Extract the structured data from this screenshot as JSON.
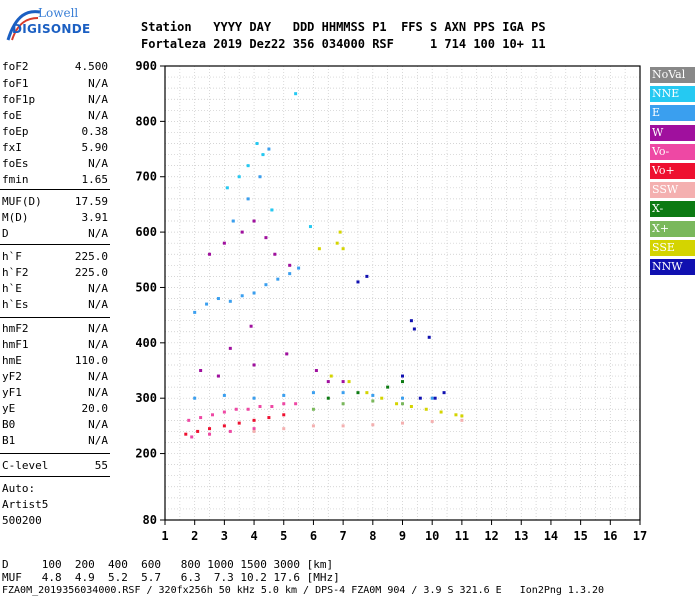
{
  "logo": {
    "line1": "Lowell",
    "line2": "DIGISONDE"
  },
  "header": {
    "line1": "Station   YYYY DAY   DDD HHMMSS P1  FFS S AXN PPS IGA PS",
    "line2": "Fortaleza 2019 Dez22 356 034000 RSF     1 714 100 10+ 11"
  },
  "params": [
    {
      "label": "foF2",
      "value": "4.500"
    },
    {
      "label": "foF1",
      "value": "N/A"
    },
    {
      "label": "foF1p",
      "value": "N/A"
    },
    {
      "label": "foE",
      "value": "N/A"
    },
    {
      "label": "foEp",
      "value": "0.38"
    },
    {
      "label": "fxI",
      "value": "5.90"
    },
    {
      "label": "foEs",
      "value": "N/A"
    },
    {
      "label": "fmin",
      "value": "1.65"
    },
    {
      "label": "MUF(D)",
      "value": "17.59"
    },
    {
      "label": "M(D)",
      "value": "3.91"
    },
    {
      "label": "D",
      "value": "N/A"
    },
    {
      "label": "h`F",
      "value": "225.0"
    },
    {
      "label": "h`F2",
      "value": "225.0"
    },
    {
      "label": "h`E",
      "value": "N/A"
    },
    {
      "label": "h`Es",
      "value": "N/A"
    },
    {
      "label": "hmF2",
      "value": "N/A"
    },
    {
      "label": "hmF1",
      "value": "N/A"
    },
    {
      "label": "hmE",
      "value": "110.0"
    },
    {
      "label": "yF2",
      "value": "N/A"
    },
    {
      "label": "yF1",
      "value": "N/A"
    },
    {
      "label": "yE",
      "value": "20.0"
    },
    {
      "label": "B0",
      "value": "N/A"
    },
    {
      "label": "B1",
      "value": "N/A"
    },
    {
      "label": "C-level",
      "value": "55"
    }
  ],
  "scaler": {
    "line1": "Auto:",
    "line2": "Artist5",
    "line3": "500200"
  },
  "legend": [
    {
      "label": "NoVal",
      "color": "#888888"
    },
    {
      "label": "NNE",
      "color": "#25c9f2"
    },
    {
      "label": "E",
      "color": "#3a9fef"
    },
    {
      "label": "W",
      "color": "#a0109e"
    },
    {
      "label": "Vo-",
      "color": "#ee48a4"
    },
    {
      "label": "Vo+",
      "color": "#ee1030"
    },
    {
      "label": "SSW",
      "color": "#f4b0b0"
    },
    {
      "label": "X-",
      "color": "#0c7a12"
    },
    {
      "label": "X+",
      "color": "#7ab85c"
    },
    {
      "label": "SSE",
      "color": "#d4d400"
    },
    {
      "label": "NNW",
      "color": "#1010b0"
    }
  ],
  "footer": {
    "line1": "D     100  200  400  600   800 1000 1500 3000 [km]",
    "line2": "MUF   4.8  4.9  5.2  5.7   6.3  7.3 10.2 17.6 [MHz]",
    "line3": "FZA0M_2019356034000.RSF / 320fx256h 50 kHz 5.0 km / DPS-4 FZA0M 904 / 3.9 S 321.6 E   Ion2Png 1.3.20"
  },
  "chart_data": {
    "type": "scatter",
    "x_range": [
      1,
      17
    ],
    "y_range": [
      80,
      900
    ],
    "x_ticks": [
      1,
      2,
      3,
      4,
      5,
      6,
      7,
      8,
      9,
      10,
      11,
      12,
      13,
      14,
      15,
      16,
      17
    ],
    "y_ticks": [
      80,
      200,
      300,
      400,
      500,
      600,
      700,
      800,
      900
    ],
    "grid": true,
    "series": [
      {
        "name": "NNE",
        "points": [
          [
            3.1,
            680
          ],
          [
            3.5,
            700
          ],
          [
            3.8,
            720
          ],
          [
            4.1,
            760
          ],
          [
            4.3,
            740
          ],
          [
            5.4,
            850
          ],
          [
            4.6,
            640
          ],
          [
            5.9,
            610
          ]
        ]
      },
      {
        "name": "E",
        "points": [
          [
            2,
            455
          ],
          [
            2.4,
            470
          ],
          [
            2.8,
            480
          ],
          [
            3.2,
            475
          ],
          [
            3.6,
            485
          ],
          [
            4,
            490
          ],
          [
            4.4,
            505
          ],
          [
            4.8,
            515
          ],
          [
            5.2,
            525
          ],
          [
            5.5,
            535
          ],
          [
            2,
            300
          ],
          [
            3,
            305
          ],
          [
            4,
            300
          ],
          [
            5,
            305
          ],
          [
            6,
            310
          ],
          [
            7,
            310
          ],
          [
            8,
            305
          ],
          [
            9,
            300
          ],
          [
            10,
            300
          ],
          [
            3.3,
            620
          ],
          [
            3.8,
            660
          ],
          [
            4.2,
            700
          ],
          [
            4.5,
            750
          ]
        ]
      },
      {
        "name": "W",
        "points": [
          [
            2.5,
            560
          ],
          [
            3,
            580
          ],
          [
            3.6,
            600
          ],
          [
            4,
            620
          ],
          [
            4.4,
            590
          ],
          [
            4.7,
            560
          ],
          [
            5.2,
            540
          ],
          [
            3.9,
            430
          ],
          [
            3.2,
            390
          ],
          [
            2.2,
            350
          ],
          [
            2.8,
            340
          ],
          [
            4,
            360
          ],
          [
            5.1,
            380
          ],
          [
            6.1,
            350
          ],
          [
            6.5,
            330
          ],
          [
            7,
            330
          ]
        ]
      },
      {
        "name": "Vo-",
        "points": [
          [
            1.8,
            260
          ],
          [
            2.2,
            265
          ],
          [
            2.6,
            270
          ],
          [
            3,
            275
          ],
          [
            3.4,
            280
          ],
          [
            3.8,
            280
          ],
          [
            4.2,
            285
          ],
          [
            4.6,
            285
          ],
          [
            5,
            290
          ],
          [
            5.4,
            290
          ],
          [
            1.9,
            230
          ],
          [
            2.5,
            235
          ],
          [
            3.2,
            240
          ],
          [
            4,
            245
          ]
        ]
      },
      {
        "name": "Vo+",
        "points": [
          [
            1.7,
            235
          ],
          [
            2.1,
            240
          ],
          [
            2.5,
            245
          ],
          [
            3,
            250
          ],
          [
            3.5,
            255
          ],
          [
            4,
            260
          ],
          [
            4.5,
            265
          ],
          [
            5,
            270
          ]
        ]
      },
      {
        "name": "SSW",
        "points": [
          [
            4,
            240
          ],
          [
            5,
            245
          ],
          [
            6,
            250
          ],
          [
            7,
            250
          ],
          [
            8,
            252
          ],
          [
            9,
            255
          ],
          [
            10,
            258
          ],
          [
            11,
            260
          ]
        ]
      },
      {
        "name": "X-",
        "points": [
          [
            6.5,
            300
          ],
          [
            7.5,
            310
          ],
          [
            8.5,
            320
          ],
          [
            9,
            330
          ]
        ]
      },
      {
        "name": "X+",
        "points": [
          [
            6,
            280
          ],
          [
            7,
            290
          ],
          [
            8,
            295
          ],
          [
            9,
            290
          ]
        ]
      },
      {
        "name": "SSE",
        "points": [
          [
            6.8,
            580
          ],
          [
            6.9,
            600
          ],
          [
            7,
            570
          ],
          [
            6.2,
            570
          ],
          [
            6.6,
            340
          ],
          [
            7.2,
            330
          ],
          [
            7.8,
            310
          ],
          [
            8.3,
            300
          ],
          [
            8.8,
            290
          ],
          [
            9.3,
            285
          ],
          [
            9.8,
            280
          ],
          [
            10.3,
            275
          ],
          [
            10.8,
            270
          ],
          [
            11,
            268
          ]
        ]
      },
      {
        "name": "NNW",
        "points": [
          [
            7.5,
            510
          ],
          [
            7.8,
            520
          ],
          [
            9.3,
            440
          ],
          [
            9.4,
            425
          ],
          [
            9.9,
            410
          ],
          [
            9,
            340
          ],
          [
            9.6,
            300
          ],
          [
            10.1,
            300
          ],
          [
            10.4,
            310
          ]
        ]
      }
    ]
  }
}
